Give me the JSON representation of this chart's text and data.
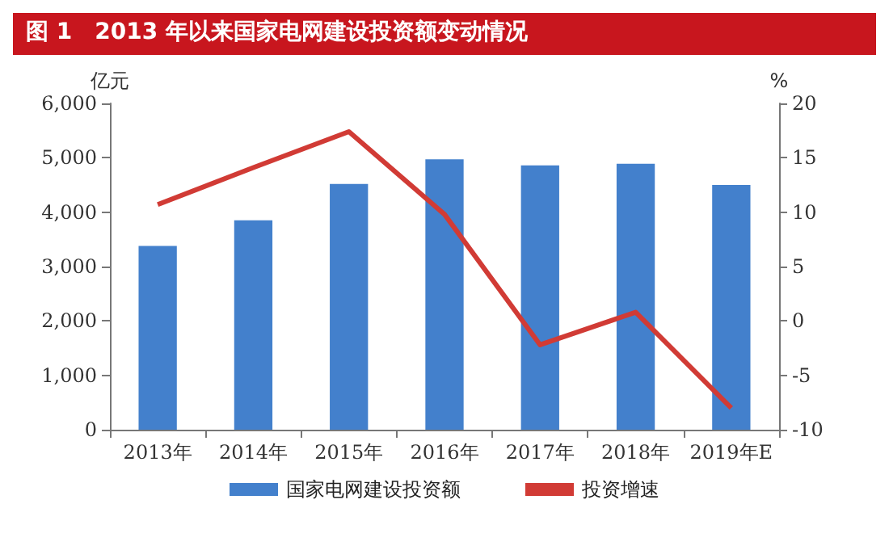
{
  "chart_data": {
    "type": "bar",
    "title": "图 1　2013 年以来国家电网建设投资额变动情况",
    "ylabel": "亿元",
    "y2label": "%",
    "categories": [
      "2013年",
      "2014年",
      "2015年",
      "2016年",
      "2017年",
      "2018年",
      "2019年E"
    ],
    "series": [
      {
        "name": "国家电网建设投资额",
        "color": "#4380cc",
        "values": [
          3380,
          3850,
          4520,
          4970,
          4860,
          4890,
          4500
        ]
      },
      {
        "name": "投资增速",
        "type": "line",
        "axis": "y2",
        "color": "#d13b35",
        "values": [
          10.7,
          14.1,
          17.4,
          9.8,
          -2.2,
          0.8,
          -8.0
        ]
      }
    ],
    "ylim": [
      0,
      6000
    ],
    "yticks": [
      0,
      {
        "value": 1000,
        "label": "1,000"
      },
      {
        "value": 2000,
        "label": "2,000"
      },
      {
        "value": 3000,
        "label": "3,000"
      },
      {
        "value": 4000,
        "label": "4,000"
      },
      {
        "value": 5000,
        "label": "5,000"
      },
      {
        "value": 6000,
        "label": "6,000"
      }
    ],
    "y2lim": [
      -10,
      20
    ],
    "y2ticks": [
      -10,
      -5,
      0,
      5,
      10,
      15,
      20
    ],
    "grid": false,
    "legend": "bottom",
    "marker": "none",
    "line_style": "solid"
  }
}
